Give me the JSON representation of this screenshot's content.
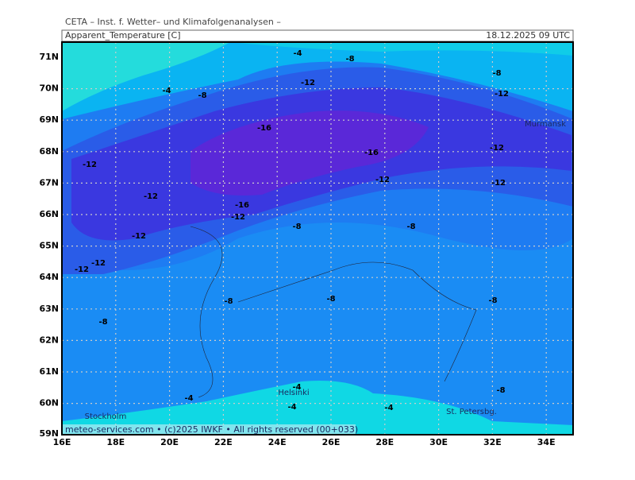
{
  "header": {
    "title": "CETA – Inst. f. Wetter– und Klimafolgenanalysen –",
    "variable": "Apparent_Temperature [C]",
    "datetime": "18.12.2025 09 UTC"
  },
  "footer": "meteo-services.com • (c)2025 IWKF • All rights reserved (00+033)",
  "lat_labels": [
    "71N",
    "70N",
    "69N",
    "68N",
    "67N",
    "66N",
    "65N",
    "64N",
    "63N",
    "62N",
    "61N",
    "60N",
    "59N"
  ],
  "lon_labels": [
    "16E",
    "18E",
    "20E",
    "22E",
    "24E",
    "26E",
    "28E",
    "30E",
    "32E",
    "34E"
  ],
  "cities": [
    "Murmansk",
    "Helsinki",
    "Stockholm",
    "St. Petersbg."
  ],
  "contour_labels": [
    "-4",
    "-8",
    "-8",
    "-12",
    "-4",
    "-8",
    "-12",
    "-16",
    "-16",
    "-12",
    "-12",
    "-12",
    "-12",
    "-12",
    "-16",
    "-12",
    "-8",
    "-8",
    "-12",
    "-12",
    "-12",
    "-8",
    "-8",
    "-8",
    "-8",
    "-8",
    "-4",
    "-4",
    "-4",
    "-4"
  ]
}
